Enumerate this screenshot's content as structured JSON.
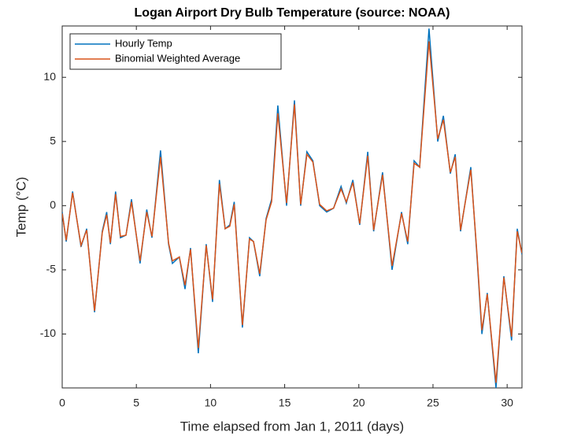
{
  "chart_data": {
    "type": "line",
    "title": "Logan Airport Dry Bulb Temperature (source: NOAA)",
    "xlabel": "Time elapsed from Jan 1, 2011 (days)",
    "ylabel": "Temp (°C)",
    "x": [
      0,
      0.27,
      0.7,
      1.27,
      1.65,
      2.18,
      2.7,
      3.0,
      3.25,
      3.6,
      3.93,
      4.3,
      4.67,
      5.25,
      5.7,
      6.05,
      6.63,
      7.17,
      7.43,
      7.9,
      8.28,
      8.65,
      9.18,
      9.71,
      10.14,
      10.6,
      10.99,
      11.3,
      11.6,
      12.15,
      12.63,
      12.9,
      13.32,
      13.75,
      14.12,
      14.54,
      15.13,
      15.66,
      16.08,
      16.5,
      16.9,
      17.36,
      17.83,
      18.3,
      18.8,
      19.16,
      19.6,
      20.06,
      20.6,
      21.0,
      21.6,
      22.24,
      22.88,
      23.3,
      23.73,
      24.1,
      24.73,
      25.32,
      25.7,
      26.17,
      26.5,
      26.86,
      27.55,
      27.97,
      28.3,
      28.66,
      29.25,
      29.78,
      30.3,
      30.68,
      31
    ],
    "series": [
      {
        "name": "Hourly Temp",
        "color": "#0072bd",
        "values": [
          -0.5,
          -2.8,
          1.1,
          -3.2,
          -1.8,
          -8.3,
          -2,
          -0.5,
          -3,
          1.1,
          -2.5,
          -2.3,
          0.5,
          -4.5,
          -0.3,
          -2.5,
          4.3,
          -3,
          -4.5,
          -4,
          -6.5,
          -3.3,
          -11.5,
          -3,
          -7.5,
          2,
          -1.8,
          -1.5,
          0.3,
          -9.5,
          -2.5,
          -2.8,
          -5.5,
          -1,
          0.5,
          7.8,
          0,
          8.2,
          0,
          4.2,
          3.5,
          0,
          -0.5,
          -0.2,
          1.5,
          0.2,
          2,
          -1.5,
          4.2,
          -2,
          2.6,
          -5,
          -0.5,
          -3,
          3.5,
          3,
          13.8,
          5,
          7,
          2.5,
          4,
          -2,
          3,
          -4,
          -10,
          -6.8,
          -14.2,
          -5.5,
          -10.5,
          -1.8,
          -3.8
        ]
      },
      {
        "name": "Binomial Weighted Average",
        "color": "#d95319",
        "values": [
          -0.6,
          -2.7,
          1.0,
          -3.1,
          -1.9,
          -8.2,
          -2.1,
          -0.7,
          -2.9,
          0.9,
          -2.4,
          -2.3,
          0.3,
          -4.3,
          -0.5,
          -2.4,
          3.8,
          -2.9,
          -4.3,
          -4,
          -6.2,
          -3.4,
          -11.1,
          -3.1,
          -7.3,
          1.7,
          -1.8,
          -1.6,
          0.1,
          -9.3,
          -2.6,
          -2.8,
          -5.3,
          -1.1,
          0.3,
          7.2,
          0.2,
          7.9,
          0.1,
          4,
          3.4,
          0.1,
          -0.4,
          -0.2,
          1.3,
          0.3,
          1.8,
          -1.4,
          3.9,
          -1.9,
          2.4,
          -4.7,
          -0.6,
          -2.8,
          3.3,
          3,
          12.8,
          5.2,
          6.7,
          2.6,
          3.8,
          -1.9,
          2.8,
          -3.8,
          -9.7,
          -6.9,
          -13.8,
          -5.6,
          -10.2,
          -2,
          -3.7
        ]
      }
    ],
    "xlim": [
      0,
      31
    ],
    "xticks": [
      0,
      5,
      10,
      15,
      20,
      25,
      30
    ],
    "ylim": [
      -14.2,
      14
    ],
    "yticks": [
      -10,
      -5,
      0,
      5,
      10
    ],
    "legend": "upper left"
  }
}
